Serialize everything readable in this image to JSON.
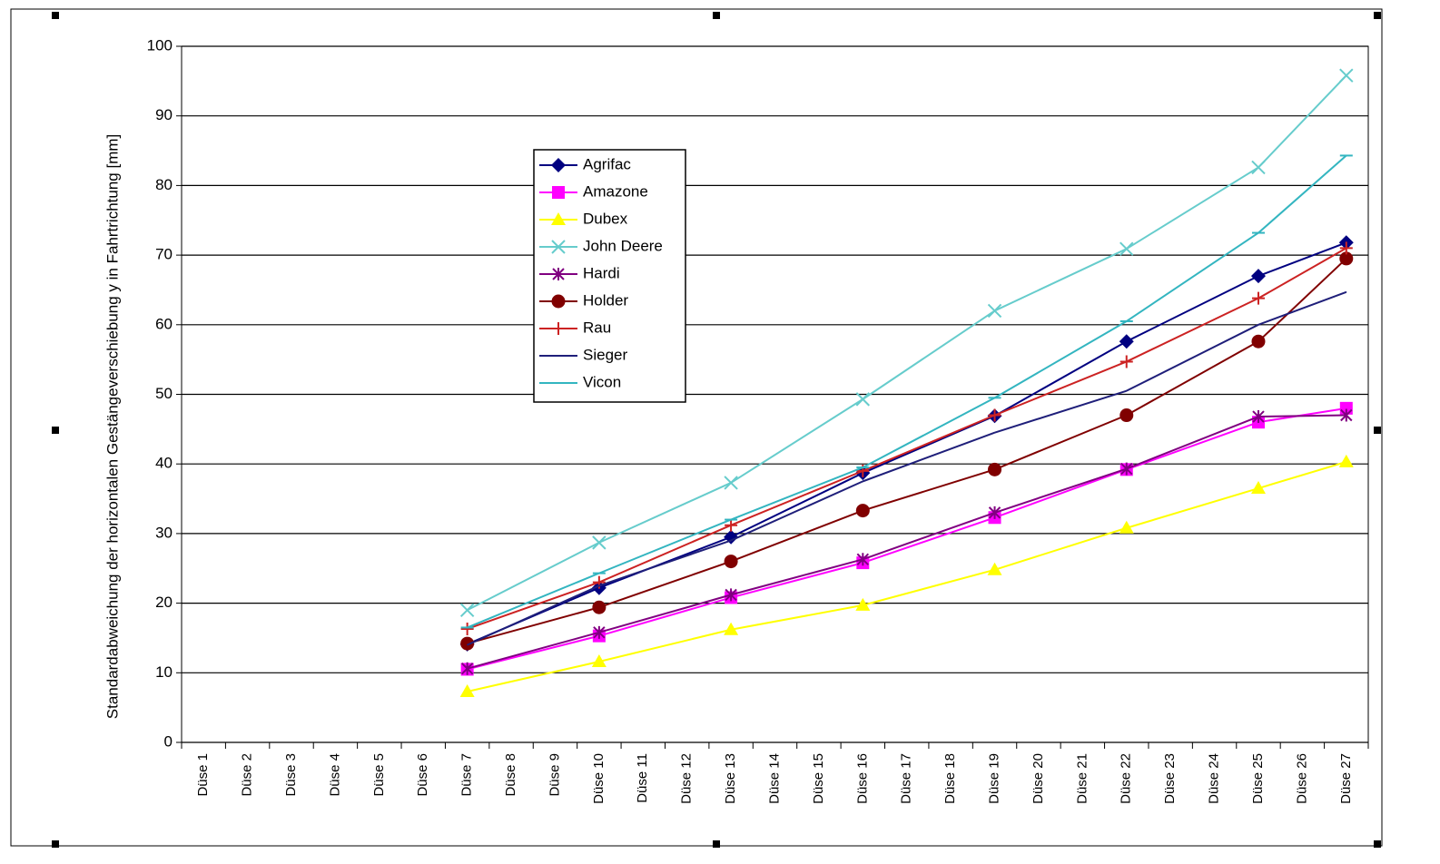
{
  "chart_data": {
    "type": "line",
    "y_label": "Standardabweichung der horizontalen Gestängeverschiebung y in Fahrtrichtung [mm]",
    "categories": [
      "Düse 1",
      "Düse 2",
      "Düse 3",
      "Düse 4",
      "Düse 5",
      "Düse 6",
      "Düse 7",
      "Düse 8",
      "Düse 9",
      "Düse 10",
      "Düse 11",
      "Düse 12",
      "Düse 13",
      "Düse 14",
      "Düse 15",
      "Düse 16",
      "Düse 17",
      "Düse 18",
      "Düse 19",
      "Düse 20",
      "Düse 21",
      "Düse 22",
      "Düse 23",
      "Düse 24",
      "Düse 25",
      "Düse 26",
      "Düse 27"
    ],
    "ylim": [
      0,
      100
    ],
    "yticks": [
      0,
      10,
      20,
      30,
      40,
      50,
      60,
      70,
      80,
      90,
      100
    ],
    "grid": true,
    "series": [
      {
        "name": "Agrifac",
        "color": "#000080",
        "marker": "diamond",
        "values": [
          null,
          null,
          null,
          null,
          null,
          null,
          14.1,
          null,
          null,
          22.2,
          null,
          null,
          29.5,
          null,
          null,
          38.7,
          null,
          null,
          46.9,
          null,
          null,
          57.6,
          null,
          null,
          67,
          null,
          71.8
        ]
      },
      {
        "name": "Amazone",
        "color": "#ff00ff",
        "marker": "square",
        "values": [
          null,
          null,
          null,
          null,
          null,
          null,
          10.5,
          null,
          null,
          15.3,
          null,
          null,
          20.8,
          null,
          null,
          25.8,
          null,
          null,
          32.3,
          null,
          null,
          39.2,
          null,
          null,
          46,
          null,
          48
        ]
      },
      {
        "name": "Dubex",
        "color": "#ffff00",
        "marker": "triangle",
        "values": [
          null,
          null,
          null,
          null,
          null,
          null,
          7.3,
          null,
          null,
          11.6,
          null,
          null,
          16.2,
          null,
          null,
          19.7,
          null,
          null,
          24.8,
          null,
          null,
          30.8,
          null,
          null,
          36.5,
          null,
          40.3
        ]
      },
      {
        "name": "John Deere",
        "color": "#66cccc",
        "marker": "x",
        "values": [
          null,
          null,
          null,
          null,
          null,
          null,
          19,
          null,
          null,
          28.7,
          null,
          null,
          37.3,
          null,
          null,
          49.3,
          null,
          null,
          62,
          null,
          null,
          70.9,
          null,
          null,
          82.6,
          null,
          95.8
        ]
      },
      {
        "name": "Hardi",
        "color": "#800080",
        "marker": "asterisk",
        "values": [
          null,
          null,
          null,
          null,
          null,
          null,
          10.6,
          null,
          null,
          15.8,
          null,
          null,
          21.2,
          null,
          null,
          26.3,
          null,
          null,
          33,
          null,
          null,
          39.3,
          null,
          null,
          46.8,
          null,
          47
        ]
      },
      {
        "name": "Holder",
        "color": "#800000",
        "marker": "circle",
        "values": [
          null,
          null,
          null,
          null,
          null,
          null,
          14.2,
          null,
          null,
          19.4,
          null,
          null,
          26,
          null,
          null,
          33.3,
          null,
          null,
          39.2,
          null,
          null,
          47,
          null,
          null,
          57.6,
          null,
          69.5
        ]
      },
      {
        "name": "Rau",
        "color": "#cc2222",
        "marker": "plus",
        "values": [
          null,
          null,
          null,
          null,
          null,
          null,
          16.3,
          null,
          null,
          23,
          null,
          null,
          31.2,
          null,
          null,
          39,
          null,
          null,
          47,
          null,
          null,
          54.7,
          null,
          null,
          63.8,
          null,
          71
        ]
      },
      {
        "name": "Sieger",
        "color": "#1f1f7a",
        "marker": "none",
        "values": [
          null,
          null,
          null,
          null,
          null,
          null,
          14,
          null,
          null,
          22.5,
          null,
          null,
          29,
          null,
          null,
          37.5,
          null,
          null,
          44.5,
          null,
          null,
          50.5,
          null,
          null,
          60,
          null,
          64.7
        ]
      },
      {
        "name": "Vicon",
        "color": "#33b5c0",
        "marker": "dash",
        "values": [
          null,
          null,
          null,
          null,
          null,
          null,
          16.5,
          null,
          null,
          24.3,
          null,
          null,
          32,
          null,
          null,
          39.5,
          null,
          null,
          49.5,
          null,
          null,
          60.5,
          null,
          null,
          73.2,
          null,
          84.3
        ]
      }
    ]
  }
}
